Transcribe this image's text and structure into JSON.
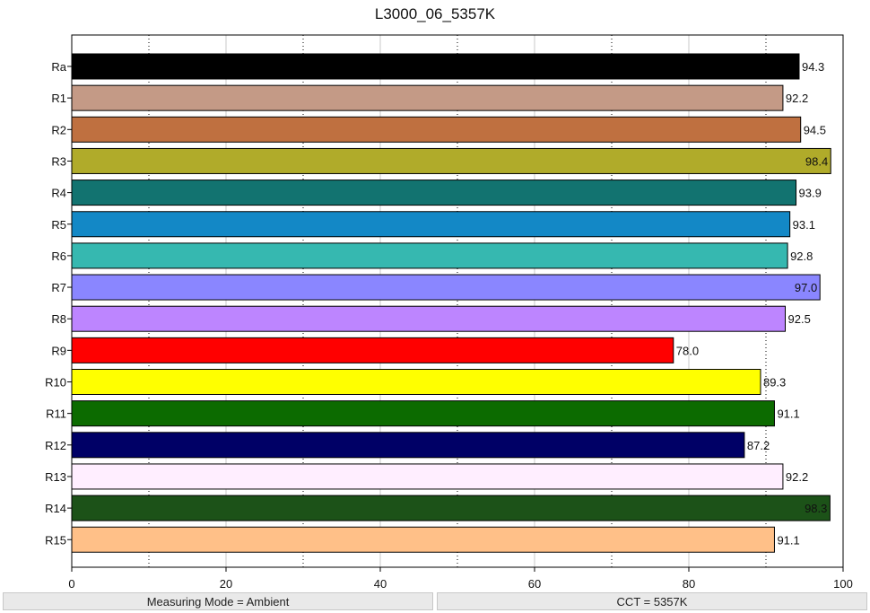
{
  "chart_data": {
    "type": "bar",
    "orientation": "horizontal",
    "title": "L3000_06_5357K",
    "xlabel": "",
    "ylabel": "",
    "xlim": [
      0,
      100
    ],
    "x_ticks": [
      0,
      20,
      40,
      60,
      80,
      100
    ],
    "minor_grid_dotted": [
      10,
      30,
      50,
      70,
      90
    ],
    "grid": true,
    "categories": [
      "Ra",
      "R1",
      "R2",
      "R3",
      "R4",
      "R5",
      "R6",
      "R7",
      "R8",
      "R9",
      "R10",
      "R11",
      "R12",
      "R13",
      "R14",
      "R15"
    ],
    "values": [
      94.3,
      92.2,
      94.5,
      98.4,
      93.9,
      93.1,
      92.8,
      97.0,
      92.5,
      78.0,
      89.3,
      91.1,
      87.2,
      92.2,
      98.3,
      91.1
    ],
    "value_labels": [
      "94.3",
      "92.2",
      "94.5",
      "98.4",
      "93.9",
      "93.1",
      "92.8",
      "97.0",
      "92.5",
      "78.0",
      "89.3",
      "91.1",
      "87.2",
      "92.2",
      "98.3",
      "91.1"
    ],
    "colors": [
      "#000000",
      "#c49a86",
      "#bf7040",
      "#b0ab2a",
      "#127370",
      "#1388c6",
      "#36b8b0",
      "#8a86ff",
      "#bd85ff",
      "#ff0000",
      "#ffff00",
      "#0c6b00",
      "#000066",
      "#ffeeff",
      "#1c5218",
      "#ffc088"
    ]
  },
  "status": {
    "left": "Measuring Mode = Ambient",
    "right": "CCT = 5357K"
  }
}
